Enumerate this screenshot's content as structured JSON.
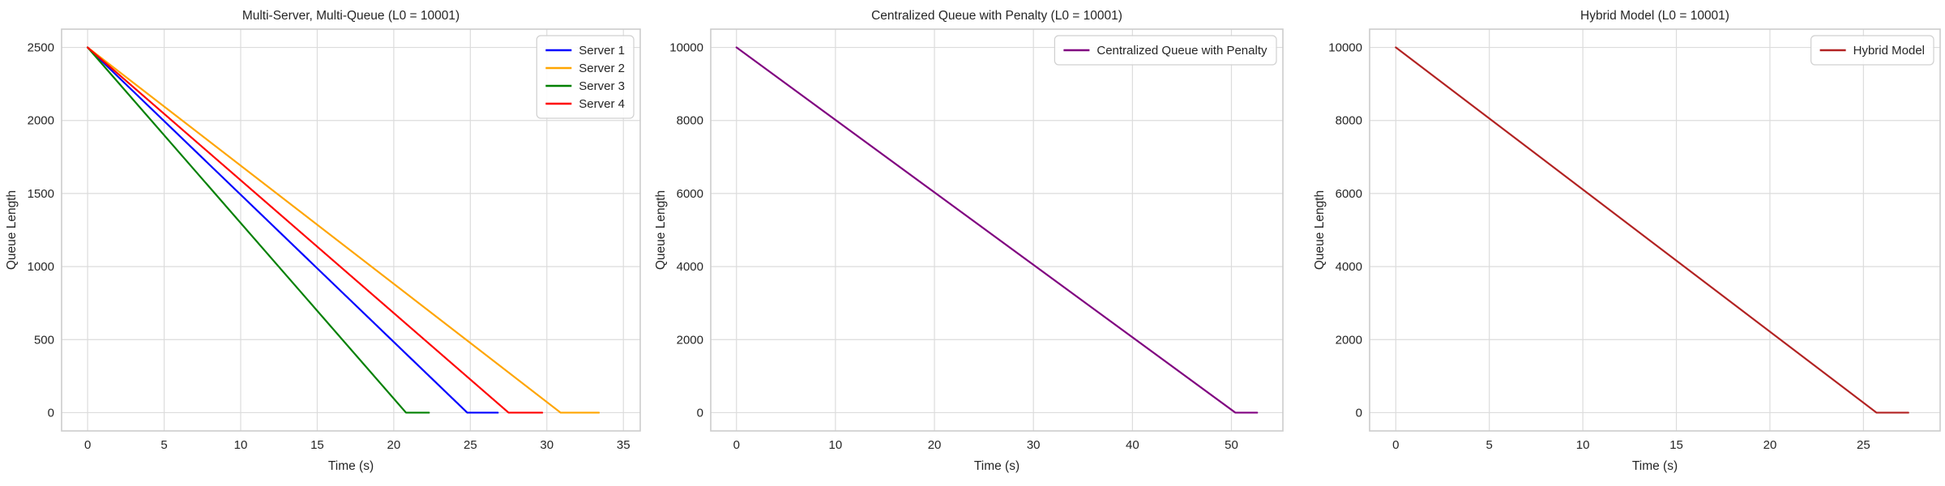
{
  "figure": {
    "background_color": "#ffffff",
    "text_color": "#262626",
    "grid_color": "#dcdcdc",
    "spine_color": "#cccccc"
  },
  "chart_data": [
    {
      "type": "line",
      "title": "Multi-Server, Multi-Queue (L0 = 10001)",
      "xlabel": "Time (s)",
      "ylabel": "Queue Length",
      "xlim": [
        -1.7,
        36.1
      ],
      "ylim": [
        -125,
        2625
      ],
      "xticks": [
        0,
        5,
        10,
        15,
        20,
        25,
        30,
        35
      ],
      "yticks": [
        0,
        500,
        1000,
        1500,
        2000,
        2500
      ],
      "grid": true,
      "legend_position": "top-right",
      "series": [
        {
          "name": "Server 1",
          "color": "#0000ff",
          "points": [
            [
              0,
              2500
            ],
            [
              24.8,
              0
            ],
            [
              26.8,
              0
            ]
          ]
        },
        {
          "name": "Server 2",
          "color": "#ffa500",
          "points": [
            [
              0,
              2500
            ],
            [
              30.9,
              0
            ],
            [
              33.4,
              0
            ]
          ]
        },
        {
          "name": "Server 3",
          "color": "#008000",
          "points": [
            [
              0,
              2500
            ],
            [
              20.8,
              0
            ],
            [
              22.3,
              0
            ]
          ]
        },
        {
          "name": "Server 4",
          "color": "#ff0000",
          "points": [
            [
              0,
              2500
            ],
            [
              27.5,
              0
            ],
            [
              29.7,
              0
            ]
          ]
        }
      ]
    },
    {
      "type": "line",
      "title": "Centralized Queue with Penalty (L0 = 10001)",
      "xlabel": "Time (s)",
      "ylabel": "Queue Length",
      "xlim": [
        -2.6,
        55.2
      ],
      "ylim": [
        -500,
        10500
      ],
      "xticks": [
        0,
        10,
        20,
        30,
        40,
        50
      ],
      "yticks": [
        0,
        2000,
        4000,
        6000,
        8000,
        10000
      ],
      "grid": true,
      "legend_position": "top-right",
      "series": [
        {
          "name": "Centralized Queue with Penalty",
          "color": "#800080",
          "points": [
            [
              0,
              10000
            ],
            [
              50.4,
              0
            ],
            [
              52.6,
              0
            ]
          ]
        }
      ]
    },
    {
      "type": "line",
      "title": "Hybrid Model (L0 = 10001)",
      "xlabel": "Time (s)",
      "ylabel": "Queue Length",
      "xlim": [
        -1.4,
        29.1
      ],
      "ylim": [
        -500,
        10500
      ],
      "xticks": [
        0,
        5,
        10,
        15,
        20,
        25
      ],
      "yticks": [
        0,
        2000,
        4000,
        6000,
        8000,
        10000
      ],
      "grid": true,
      "legend_position": "top-right",
      "series": [
        {
          "name": "Hybrid Model",
          "color": "#b22222",
          "points": [
            [
              0,
              10000
            ],
            [
              25.7,
              0
            ],
            [
              27.4,
              0
            ]
          ]
        }
      ]
    }
  ]
}
